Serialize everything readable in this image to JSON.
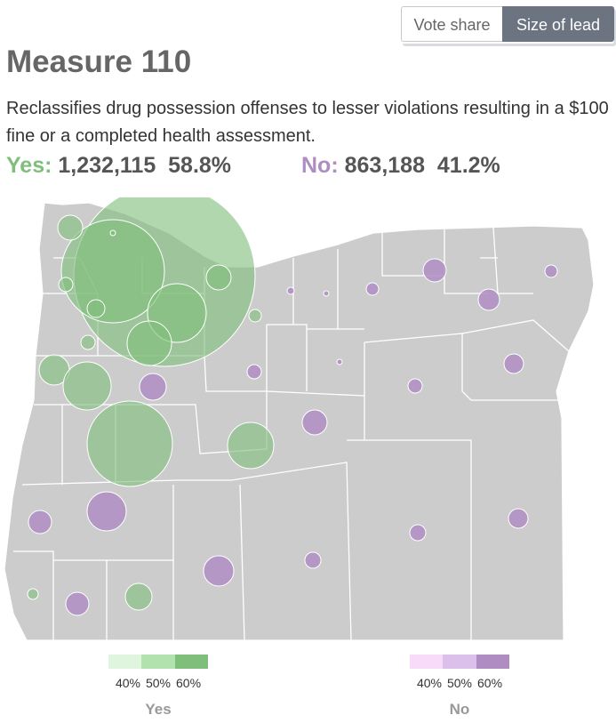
{
  "toggle": {
    "vote_share": "Vote share",
    "size_of_lead": "Size of lead",
    "active": "size_of_lead"
  },
  "title": "Measure 110",
  "description": "Reclassifies drug possession offenses to lesser violations resulting in a $100 fine or a completed health assessment.",
  "results": {
    "yes": {
      "label": "Yes:",
      "votes": "1,232,115",
      "pct": "58.8%"
    },
    "no": {
      "label": "No:",
      "votes": "863,188",
      "pct": "41.2%"
    }
  },
  "colors": {
    "yes": "#7fbf7b",
    "no": "#af8dc3",
    "land": "#cccccc",
    "border": "#ffffff"
  },
  "legend": {
    "yes": {
      "title": "Yes",
      "ticks": [
        "40%",
        "50%",
        "60%"
      ],
      "colors": [
        "#e0f5de",
        "#b2e3ae",
        "#7fbf7b"
      ]
    },
    "no": {
      "title": "No",
      "ticks": [
        "40%",
        "50%",
        "60%"
      ],
      "colors": [
        "#f8dbf8",
        "#dcc0ec",
        "#af8dc3"
      ]
    }
  },
  "map": {
    "state": "Oregon",
    "symbol": "proportional circles sized by lead, colored by winning side"
  }
}
